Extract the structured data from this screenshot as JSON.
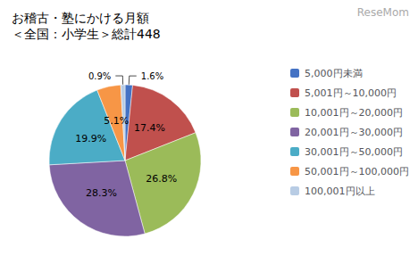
{
  "chart_data": {
    "type": "pie",
    "title": "お稽古・塾にかける月額\n＜全国：小学生＞総計448",
    "annotations": [
      "ReseMom"
    ],
    "categories": [
      "5,000円未満",
      "5,001円～10,000円",
      "10,001円～20,000円",
      "20,001円～30,000円",
      "30,001円～50,000円",
      "50,001円～100,000円",
      "100,001円以上"
    ],
    "values": [
      1.6,
      17.4,
      26.8,
      28.3,
      19.9,
      5.1,
      0.9
    ],
    "value_labels": [
      "1.6%",
      "17.4%",
      "26.8%",
      "28.3%",
      "19.9%",
      "5.1%",
      "0.9%"
    ],
    "colors": [
      "#4472C4",
      "#C0504D",
      "#9BBB59",
      "#8064A2",
      "#4BACC6",
      "#F79646",
      "#B8CCE4"
    ],
    "data_labels": true,
    "legend": "right"
  }
}
